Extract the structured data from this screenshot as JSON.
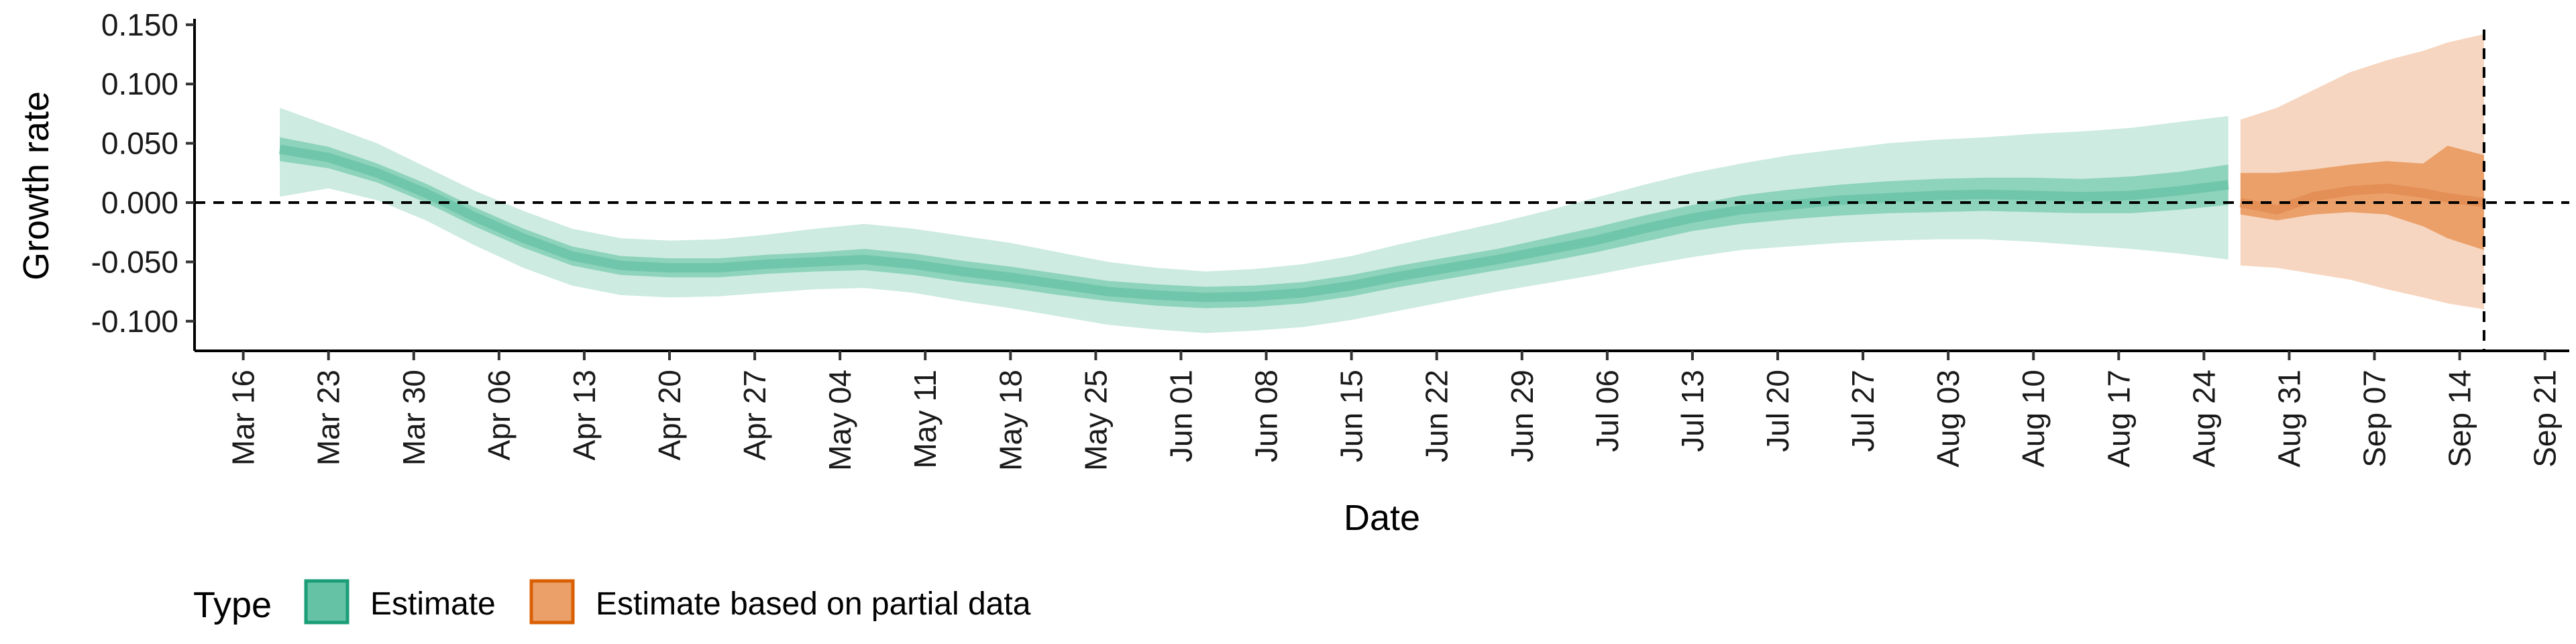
{
  "chart_data": {
    "type": "area",
    "title": "",
    "xlabel": "Date",
    "ylabel": "Growth rate",
    "ylim": [
      -0.125,
      0.155
    ],
    "xlim": [
      "2020-03-12",
      "2020-09-23"
    ],
    "yticks": [
      0.15,
      0.1,
      0.05,
      0.0,
      -0.05,
      -0.1
    ],
    "ytick_labels": [
      "0.150",
      "0.100",
      "0.050",
      "0.000",
      "-0.050",
      "-0.100"
    ],
    "xticks": [
      "2020-03-16",
      "2020-03-23",
      "2020-03-30",
      "2020-04-06",
      "2020-04-13",
      "2020-04-20",
      "2020-04-27",
      "2020-05-04",
      "2020-05-11",
      "2020-05-18",
      "2020-05-25",
      "2020-06-01",
      "2020-06-08",
      "2020-06-15",
      "2020-06-22",
      "2020-06-29",
      "2020-07-06",
      "2020-07-13",
      "2020-07-20",
      "2020-07-27",
      "2020-08-03",
      "2020-08-10",
      "2020-08-17",
      "2020-08-24",
      "2020-08-31",
      "2020-09-07",
      "2020-09-14",
      "2020-09-21"
    ],
    "xtick_labels": [
      "Mar 16",
      "Mar 23",
      "Mar 30",
      "Apr 06",
      "Apr 13",
      "Apr 20",
      "Apr 27",
      "May 04",
      "May 11",
      "May 18",
      "May 25",
      "Jun 01",
      "Jun 08",
      "Jun 15",
      "Jun 22",
      "Jun 29",
      "Jul 06",
      "Jul 13",
      "Jul 20",
      "Jul 27",
      "Aug 03",
      "Aug 10",
      "Aug 17",
      "Aug 24",
      "Aug 31",
      "Sep 07",
      "Sep 14",
      "Sep 21"
    ],
    "reference_lines": {
      "horizontal": 0.0,
      "vertical": "2020-09-16"
    },
    "legend": {
      "title": "Type",
      "placement": "bottom-left",
      "entries": [
        {
          "label": "Estimate",
          "fill": "#66c2a5",
          "border": "#1b9e77"
        },
        {
          "label": "Estimate based on partial data",
          "fill": "#eba06a",
          "border": "#d95f02"
        }
      ]
    },
    "series": [
      {
        "name": "Estimate",
        "color": "#1b9e77",
        "points": [
          {
            "x": "2020-03-19",
            "median": 0.045,
            "lower50": 0.035,
            "upper50": 0.055,
            "lower90": 0.005,
            "upper90": 0.08
          },
          {
            "x": "2020-03-23",
            "median": 0.038,
            "lower50": 0.029,
            "upper50": 0.047,
            "lower90": 0.012,
            "upper90": 0.065
          },
          {
            "x": "2020-03-27",
            "median": 0.025,
            "lower50": 0.017,
            "upper50": 0.033,
            "lower90": 0.002,
            "upper90": 0.05
          },
          {
            "x": "2020-03-31",
            "median": 0.008,
            "lower50": 0.0,
            "upper50": 0.016,
            "lower90": -0.015,
            "upper90": 0.03
          },
          {
            "x": "2020-04-04",
            "median": -0.012,
            "lower50": -0.02,
            "upper50": -0.004,
            "lower90": -0.036,
            "upper90": 0.01
          },
          {
            "x": "2020-04-08",
            "median": -0.03,
            "lower50": -0.038,
            "upper50": -0.022,
            "lower90": -0.055,
            "upper90": -0.007
          },
          {
            "x": "2020-04-12",
            "median": -0.045,
            "lower50": -0.053,
            "upper50": -0.037,
            "lower90": -0.07,
            "upper90": -0.022
          },
          {
            "x": "2020-04-16",
            "median": -0.053,
            "lower50": -0.061,
            "upper50": -0.045,
            "lower90": -0.078,
            "upper90": -0.03
          },
          {
            "x": "2020-04-20",
            "median": -0.055,
            "lower50": -0.063,
            "upper50": -0.047,
            "lower90": -0.08,
            "upper90": -0.032
          },
          {
            "x": "2020-04-24",
            "median": -0.055,
            "lower50": -0.063,
            "upper50": -0.047,
            "lower90": -0.079,
            "upper90": -0.031
          },
          {
            "x": "2020-04-28",
            "median": -0.052,
            "lower50": -0.06,
            "upper50": -0.044,
            "lower90": -0.076,
            "upper90": -0.027
          },
          {
            "x": "2020-05-02",
            "median": -0.05,
            "lower50": -0.058,
            "upper50": -0.042,
            "lower90": -0.073,
            "upper90": -0.022
          },
          {
            "x": "2020-05-06",
            "median": -0.048,
            "lower50": -0.057,
            "upper50": -0.039,
            "lower90": -0.072,
            "upper90": -0.018
          },
          {
            "x": "2020-05-10",
            "median": -0.052,
            "lower50": -0.061,
            "upper50": -0.043,
            "lower90": -0.076,
            "upper90": -0.022
          },
          {
            "x": "2020-05-14",
            "median": -0.058,
            "lower50": -0.067,
            "upper50": -0.049,
            "lower90": -0.083,
            "upper90": -0.028
          },
          {
            "x": "2020-05-18",
            "median": -0.063,
            "lower50": -0.072,
            "upper50": -0.054,
            "lower90": -0.089,
            "upper90": -0.034
          },
          {
            "x": "2020-05-22",
            "median": -0.069,
            "lower50": -0.078,
            "upper50": -0.06,
            "lower90": -0.096,
            "upper90": -0.042
          },
          {
            "x": "2020-05-26",
            "median": -0.075,
            "lower50": -0.083,
            "upper50": -0.066,
            "lower90": -0.103,
            "upper90": -0.05
          },
          {
            "x": "2020-05-30",
            "median": -0.078,
            "lower50": -0.087,
            "upper50": -0.069,
            "lower90": -0.107,
            "upper90": -0.055
          },
          {
            "x": "2020-06-03",
            "median": -0.08,
            "lower50": -0.089,
            "upper50": -0.071,
            "lower90": -0.11,
            "upper90": -0.058
          },
          {
            "x": "2020-06-07",
            "median": -0.079,
            "lower50": -0.088,
            "upper50": -0.07,
            "lower90": -0.108,
            "upper90": -0.056
          },
          {
            "x": "2020-06-11",
            "median": -0.076,
            "lower50": -0.085,
            "upper50": -0.067,
            "lower90": -0.105,
            "upper90": -0.052
          },
          {
            "x": "2020-06-15",
            "median": -0.07,
            "lower50": -0.079,
            "upper50": -0.061,
            "lower90": -0.099,
            "upper90": -0.045
          },
          {
            "x": "2020-06-19",
            "median": -0.062,
            "lower50": -0.071,
            "upper50": -0.053,
            "lower90": -0.091,
            "upper90": -0.035
          },
          {
            "x": "2020-06-23",
            "median": -0.055,
            "lower50": -0.064,
            "upper50": -0.046,
            "lower90": -0.083,
            "upper90": -0.026
          },
          {
            "x": "2020-06-27",
            "median": -0.048,
            "lower50": -0.057,
            "upper50": -0.039,
            "lower90": -0.075,
            "upper90": -0.017
          },
          {
            "x": "2020-07-01",
            "median": -0.04,
            "lower50": -0.05,
            "upper50": -0.03,
            "lower90": -0.068,
            "upper90": -0.007
          },
          {
            "x": "2020-07-05",
            "median": -0.032,
            "lower50": -0.042,
            "upper50": -0.021,
            "lower90": -0.061,
            "upper90": 0.004
          },
          {
            "x": "2020-07-09",
            "median": -0.022,
            "lower50": -0.033,
            "upper50": -0.011,
            "lower90": -0.053,
            "upper90": 0.015
          },
          {
            "x": "2020-07-13",
            "median": -0.013,
            "lower50": -0.024,
            "upper50": -0.002,
            "lower90": -0.046,
            "upper90": 0.025
          },
          {
            "x": "2020-07-17",
            "median": -0.006,
            "lower50": -0.018,
            "upper50": 0.006,
            "lower90": -0.04,
            "upper90": 0.033
          },
          {
            "x": "2020-07-21",
            "median": -0.002,
            "lower50": -0.014,
            "upper50": 0.011,
            "lower90": -0.037,
            "upper90": 0.04
          },
          {
            "x": "2020-07-25",
            "median": 0.002,
            "lower50": -0.011,
            "upper50": 0.015,
            "lower90": -0.034,
            "upper90": 0.045
          },
          {
            "x": "2020-07-29",
            "median": 0.004,
            "lower50": -0.009,
            "upper50": 0.018,
            "lower90": -0.032,
            "upper90": 0.05
          },
          {
            "x": "2020-08-02",
            "median": 0.006,
            "lower50": -0.008,
            "upper50": 0.02,
            "lower90": -0.031,
            "upper90": 0.053
          },
          {
            "x": "2020-08-06",
            "median": 0.007,
            "lower50": -0.007,
            "upper50": 0.021,
            "lower90": -0.031,
            "upper90": 0.055
          },
          {
            "x": "2020-08-10",
            "median": 0.006,
            "lower50": -0.008,
            "upper50": 0.021,
            "lower90": -0.033,
            "upper90": 0.058
          },
          {
            "x": "2020-08-14",
            "median": 0.005,
            "lower50": -0.009,
            "upper50": 0.02,
            "lower90": -0.036,
            "upper90": 0.06
          },
          {
            "x": "2020-08-18",
            "median": 0.006,
            "lower50": -0.009,
            "upper50": 0.022,
            "lower90": -0.039,
            "upper90": 0.063
          },
          {
            "x": "2020-08-22",
            "median": 0.01,
            "lower50": -0.006,
            "upper50": 0.026,
            "lower90": -0.043,
            "upper90": 0.068
          },
          {
            "x": "2020-08-26",
            "median": 0.015,
            "lower50": -0.002,
            "upper50": 0.032,
            "lower90": -0.048,
            "upper90": 0.073
          }
        ]
      },
      {
        "name": "Estimate based on partial data",
        "color": "#d95f02",
        "points": [
          {
            "x": "2020-08-27",
            "median": 0.0,
            "lower50": -0.01,
            "upper50": 0.025,
            "lower90": -0.053,
            "upper90": 0.07
          },
          {
            "x": "2020-08-30",
            "median": -0.006,
            "lower50": -0.015,
            "upper50": 0.025,
            "lower90": -0.055,
            "upper90": 0.08
          },
          {
            "x": "2020-09-02",
            "median": 0.005,
            "lower50": -0.01,
            "upper50": 0.028,
            "lower90": -0.06,
            "upper90": 0.095
          },
          {
            "x": "2020-09-05",
            "median": 0.01,
            "lower50": -0.008,
            "upper50": 0.032,
            "lower90": -0.065,
            "upper90": 0.11
          },
          {
            "x": "2020-09-08",
            "median": 0.012,
            "lower50": -0.01,
            "upper50": 0.035,
            "lower90": -0.073,
            "upper90": 0.12
          },
          {
            "x": "2020-09-11",
            "median": 0.008,
            "lower50": -0.02,
            "upper50": 0.033,
            "lower90": -0.08,
            "upper90": 0.128
          },
          {
            "x": "2020-09-13",
            "median": 0.004,
            "lower50": -0.03,
            "upper50": 0.048,
            "lower90": -0.085,
            "upper90": 0.135
          },
          {
            "x": "2020-09-16",
            "median": 0.0,
            "lower50": -0.04,
            "upper50": 0.04,
            "lower90": -0.09,
            "upper90": 0.142
          }
        ]
      }
    ]
  }
}
